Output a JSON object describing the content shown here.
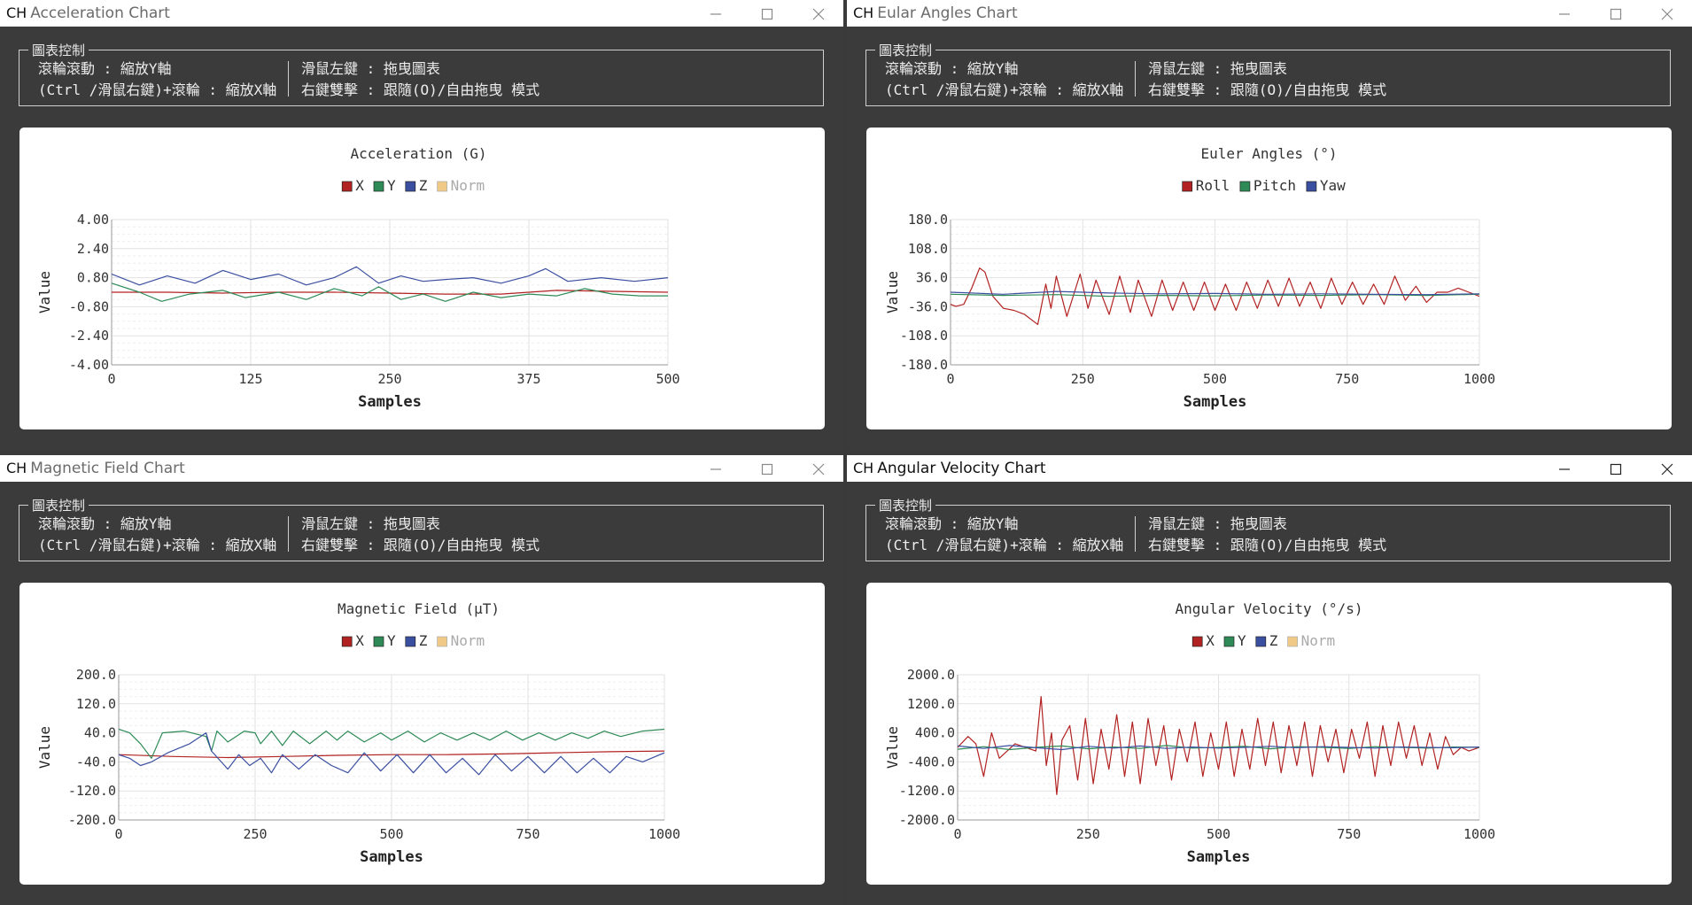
{
  "windows": [
    {
      "id": "acc",
      "app_code": "CH",
      "title": "Acceleration Chart",
      "active": false,
      "controls": {
        "legend": "圖表控制",
        "line1_left": "滾輪滾動 : 縮放Y軸",
        "line2_left": "(Ctrl /滑鼠右鍵)+滾輪 : 縮放X軸",
        "line1_right": "滑鼠左鍵 : 拖曳圖表",
        "line2_right": "右鍵雙擊 : 跟隨(O)/自由拖曳 模式"
      },
      "chart_data": {
        "type": "line",
        "title": "Acceleration (G)",
        "xlabel": "Samples",
        "ylabel": "Value",
        "xlim": [
          0,
          500
        ],
        "ylim": [
          -4.0,
          4.0
        ],
        "x_ticks": [
          "0",
          "125",
          "250",
          "375",
          "500"
        ],
        "y_ticks": [
          "4.00",
          "2.40",
          "0.80",
          "-0.80",
          "-2.40",
          "-4.00"
        ],
        "grid": true,
        "legend_position": "top-center",
        "legend": [
          {
            "name": "X",
            "color": "#b22222",
            "active": true
          },
          {
            "name": "Y",
            "color": "#2e8b57",
            "active": true
          },
          {
            "name": "Z",
            "color": "#3b4fa0",
            "active": true
          },
          {
            "name": "Norm",
            "color": "#f0c987",
            "active": false
          }
        ],
        "series": [
          {
            "name": "X",
            "color": "#b22222",
            "x": [
              0,
              50,
              100,
              150,
              200,
              250,
              300,
              350,
              400,
              450,
              500
            ],
            "y": [
              0.0,
              0.0,
              -0.05,
              0.0,
              0.0,
              -0.05,
              -0.1,
              -0.1,
              0.1,
              0.05,
              0.0
            ]
          },
          {
            "name": "Y",
            "color": "#2e8b57",
            "x": [
              0,
              25,
              45,
              70,
              100,
              120,
              150,
              175,
              200,
              225,
              240,
              260,
              280,
              300,
              325,
              350,
              375,
              400,
              425,
              450,
              475,
              500
            ],
            "y": [
              0.5,
              0.0,
              -0.5,
              -0.1,
              0.1,
              -0.3,
              0.0,
              -0.4,
              0.2,
              -0.2,
              0.3,
              -0.4,
              -0.1,
              -0.5,
              0.0,
              -0.3,
              -0.1,
              -0.2,
              0.2,
              -0.1,
              -0.2,
              -0.2
            ]
          },
          {
            "name": "Z",
            "color": "#3b4fa0",
            "x": [
              0,
              25,
              50,
              75,
              100,
              125,
              150,
              175,
              200,
              220,
              240,
              260,
              280,
              300,
              325,
              350,
              375,
              390,
              410,
              440,
              470,
              500
            ],
            "y": [
              1.0,
              0.4,
              0.9,
              0.5,
              1.2,
              0.7,
              1.0,
              0.4,
              0.8,
              1.4,
              0.5,
              0.9,
              0.6,
              0.7,
              0.8,
              0.5,
              0.9,
              1.3,
              0.6,
              0.8,
              0.6,
              0.8
            ]
          }
        ]
      }
    },
    {
      "id": "euler",
      "app_code": "CH",
      "title": "Eular Angles Chart",
      "active": false,
      "controls": {
        "legend": "圖表控制",
        "line1_left": "滾輪滾動 : 縮放Y軸",
        "line2_left": "(Ctrl /滑鼠右鍵)+滾輪 : 縮放X軸",
        "line1_right": "滑鼠左鍵 : 拖曳圖表",
        "line2_right": "右鍵雙擊 : 跟隨(O)/自由拖曳 模式"
      },
      "chart_data": {
        "type": "line",
        "title": "Euler Angles (°)",
        "xlabel": "Samples",
        "ylabel": "Value",
        "xlim": [
          0,
          1000
        ],
        "ylim": [
          -180.0,
          180.0
        ],
        "x_ticks": [
          "0",
          "250",
          "500",
          "750",
          "1000"
        ],
        "y_ticks": [
          "180.0",
          "108.0",
          "36.0",
          "-36.0",
          "-108.0",
          "-180.0"
        ],
        "grid": true,
        "legend_position": "top-center",
        "legend": [
          {
            "name": "Roll",
            "color": "#b22222",
            "active": true
          },
          {
            "name": "Pitch",
            "color": "#2e8b57",
            "active": true
          },
          {
            "name": "Yaw",
            "color": "#3b4fa0",
            "active": true
          }
        ],
        "series": [
          {
            "name": "Roll",
            "color": "#b22222",
            "x": [
              0,
              10,
              25,
              40,
              55,
              65,
              80,
              100,
              120,
              140,
              160,
              165,
              180,
              190,
              200,
              220,
              245,
              260,
              275,
              300,
              320,
              340,
              355,
              380,
              400,
              420,
              440,
              460,
              480,
              500,
              520,
              540,
              560,
              580,
              600,
              620,
              640,
              660,
              680,
              700,
              720,
              740,
              760,
              780,
              800,
              820,
              840,
              860,
              880,
              900,
              920,
              940,
              960,
              980,
              1000
            ],
            "y": [
              -30,
              -35,
              -30,
              10,
              60,
              50,
              -10,
              -40,
              -45,
              -55,
              -75,
              -80,
              20,
              -40,
              40,
              -60,
              45,
              -40,
              30,
              -55,
              40,
              -50,
              30,
              -60,
              30,
              -45,
              25,
              -45,
              25,
              -45,
              20,
              -45,
              25,
              -40,
              30,
              -35,
              35,
              -35,
              25,
              -40,
              35,
              -30,
              25,
              -30,
              20,
              -30,
              40,
              -20,
              15,
              -25,
              0,
              0,
              10,
              0,
              -10
            ]
          },
          {
            "name": "Pitch",
            "color": "#2e8b57",
            "x": [
              0,
              100,
              200,
              300,
              400,
              500,
              600,
              700,
              800,
              900,
              1000
            ],
            "y": [
              -5,
              -8,
              -6,
              -10,
              -8,
              -9,
              -7,
              -8,
              -6,
              -8,
              -5
            ]
          },
          {
            "name": "Yaw",
            "color": "#3b4fa0",
            "x": [
              0,
              100,
              200,
              300,
              400,
              500,
              600,
              700,
              800,
              900,
              1000
            ],
            "y": [
              0,
              -5,
              2,
              -2,
              -4,
              -3,
              -5,
              -4,
              -5,
              -6,
              -4
            ]
          }
        ]
      }
    },
    {
      "id": "mag",
      "app_code": "CH",
      "title": "Magnetic Field Chart",
      "active": false,
      "controls": {
        "legend": "圖表控制",
        "line1_left": "滾輪滾動 : 縮放Y軸",
        "line2_left": "(Ctrl /滑鼠右鍵)+滾輪 : 縮放X軸",
        "line1_right": "滑鼠左鍵 : 拖曳圖表",
        "line2_right": "右鍵雙擊 : 跟隨(O)/自由拖曳 模式"
      },
      "chart_data": {
        "type": "line",
        "title": "Magnetic Field (μT)",
        "xlabel": "Samples",
        "ylabel": "Value",
        "xlim": [
          0,
          1000
        ],
        "ylim": [
          -200.0,
          200.0
        ],
        "x_ticks": [
          "0",
          "250",
          "500",
          "750",
          "1000"
        ],
        "y_ticks": [
          "200.0",
          "120.0",
          "40.0",
          "-40.0",
          "-120.0",
          "-200.0"
        ],
        "grid": true,
        "legend_position": "top-center",
        "legend": [
          {
            "name": "X",
            "color": "#b22222",
            "active": true
          },
          {
            "name": "Y",
            "color": "#2e8b57",
            "active": true
          },
          {
            "name": "Z",
            "color": "#3b4fa0",
            "active": true
          },
          {
            "name": "Norm",
            "color": "#f0c987",
            "active": false
          }
        ],
        "series": [
          {
            "name": "X",
            "color": "#b22222",
            "x": [
              0,
              100,
              200,
              300,
              400,
              500,
              600,
              700,
              800,
              900,
              1000
            ],
            "y": [
              -20,
              -25,
              -28,
              -25,
              -22,
              -20,
              -20,
              -18,
              -15,
              -12,
              -10
            ]
          },
          {
            "name": "Y",
            "color": "#2e8b57",
            "x": [
              0,
              20,
              40,
              60,
              80,
              120,
              160,
              170,
              180,
              200,
              230,
              250,
              260,
              280,
              300,
              320,
              350,
              380,
              400,
              420,
              450,
              480,
              500,
              530,
              560,
              590,
              620,
              650,
              680,
              710,
              740,
              770,
              800,
              830,
              860,
              890,
              920,
              960,
              1000
            ],
            "y": [
              50,
              40,
              10,
              -30,
              40,
              45,
              30,
              -10,
              45,
              15,
              45,
              40,
              10,
              45,
              5,
              45,
              10,
              45,
              20,
              45,
              15,
              40,
              20,
              45,
              15,
              40,
              20,
              40,
              20,
              45,
              20,
              40,
              20,
              40,
              25,
              45,
              30,
              45,
              50
            ]
          },
          {
            "name": "Z",
            "color": "#3b4fa0",
            "x": [
              0,
              20,
              40,
              60,
              90,
              130,
              160,
              170,
              200,
              220,
              240,
              260,
              280,
              300,
              330,
              360,
              390,
              420,
              450,
              480,
              510,
              540,
              570,
              600,
              630,
              660,
              690,
              720,
              750,
              780,
              810,
              840,
              870,
              900,
              930,
              960,
              1000
            ],
            "y": [
              -20,
              -30,
              -50,
              -40,
              -15,
              10,
              40,
              -10,
              -60,
              -20,
              -50,
              -30,
              -70,
              -20,
              -60,
              -20,
              -50,
              -70,
              -15,
              -65,
              -20,
              -70,
              -20,
              -70,
              -30,
              -75,
              -20,
              -65,
              -25,
              -70,
              -25,
              -70,
              -30,
              -70,
              -25,
              -40,
              -15
            ]
          }
        ]
      }
    },
    {
      "id": "gyro",
      "app_code": "CH",
      "title": "Angular Velocity Chart",
      "active": true,
      "controls": {
        "legend": "圖表控制",
        "line1_left": "滾輪滾動 : 縮放Y軸",
        "line2_left": "(Ctrl /滑鼠右鍵)+滾輪 : 縮放X軸",
        "line1_right": "滑鼠左鍵 : 拖曳圖表",
        "line2_right": "右鍵雙擊 : 跟隨(O)/自由拖曳 模式"
      },
      "chart_data": {
        "type": "line",
        "title": "Angular Velocity (°/s)",
        "xlabel": "Samples",
        "ylabel": "Value",
        "xlim": [
          0,
          1000
        ],
        "ylim": [
          -2000.0,
          2000.0
        ],
        "x_ticks": [
          "0",
          "250",
          "500",
          "750",
          "1000"
        ],
        "y_ticks": [
          "2000.0",
          "1200.0",
          "400.0",
          "-400.0",
          "-1200.0",
          "-2000.0"
        ],
        "grid": true,
        "legend_position": "top-center",
        "legend": [
          {
            "name": "X",
            "color": "#b22222",
            "active": true
          },
          {
            "name": "Y",
            "color": "#2e8b57",
            "active": true
          },
          {
            "name": "Z",
            "color": "#3b4fa0",
            "active": true
          },
          {
            "name": "Norm",
            "color": "#f0c987",
            "active": false
          }
        ],
        "series": [
          {
            "name": "X",
            "color": "#b22222",
            "x": [
              0,
              20,
              35,
              50,
              65,
              80,
              110,
              150,
              160,
              170,
              180,
              190,
              200,
              215,
              230,
              245,
              260,
              275,
              290,
              305,
              320,
              335,
              350,
              365,
              380,
              395,
              410,
              425,
              440,
              455,
              470,
              485,
              500,
              515,
              530,
              545,
              560,
              575,
              590,
              605,
              620,
              635,
              650,
              665,
              680,
              695,
              710,
              725,
              740,
              755,
              770,
              785,
              800,
              815,
              830,
              845,
              860,
              875,
              890,
              905,
              920,
              935,
              950,
              965,
              980,
              1000
            ],
            "y": [
              0,
              300,
              100,
              -800,
              400,
              -300,
              100,
              -100,
              1400,
              -500,
              400,
              -1300,
              200,
              600,
              -900,
              800,
              -1000,
              500,
              -600,
              900,
              -800,
              700,
              -1000,
              800,
              -500,
              600,
              -900,
              500,
              -400,
              700,
              -800,
              400,
              -600,
              700,
              -800,
              500,
              -600,
              800,
              -500,
              700,
              -700,
              600,
              -500,
              700,
              -800,
              600,
              -400,
              500,
              -700,
              500,
              -300,
              700,
              -800,
              600,
              -500,
              700,
              -300,
              600,
              -500,
              400,
              -600,
              300,
              -200,
              0,
              -100,
              0
            ]
          },
          {
            "name": "Y",
            "color": "#2e8b57",
            "x": [
              0,
              50,
              100,
              150,
              200,
              250,
              300,
              350,
              400,
              450,
              500,
              550,
              600,
              650,
              700,
              750,
              800,
              850,
              900,
              950,
              1000
            ],
            "y": [
              -50,
              20,
              -60,
              0,
              40,
              -40,
              10,
              -30,
              50,
              -20,
              0,
              30,
              -40,
              20,
              0,
              -30,
              20,
              0,
              -20,
              10,
              0
            ]
          },
          {
            "name": "Z",
            "color": "#3b4fa0",
            "x": [
              0,
              50,
              100,
              150,
              200,
              250,
              300,
              350,
              400,
              450,
              500,
              550,
              600,
              650,
              700,
              750,
              800,
              850,
              900,
              950,
              1000
            ],
            "y": [
              40,
              -30,
              50,
              -10,
              -60,
              30,
              -20,
              40,
              -30,
              10,
              -20,
              0,
              30,
              -10,
              20,
              0,
              -20,
              10,
              0,
              -10,
              10
            ]
          }
        ]
      }
    }
  ]
}
